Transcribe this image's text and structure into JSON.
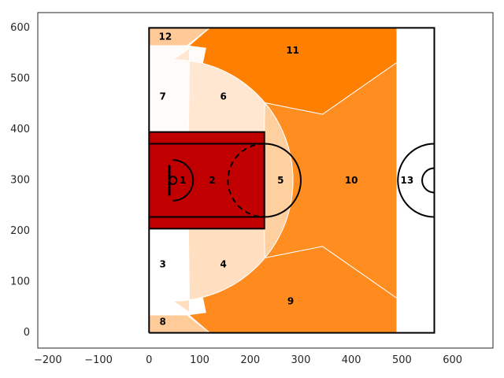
{
  "chart_data": {
    "type": "heatmap",
    "title": "",
    "xlabel": "",
    "ylabel": "",
    "xlim": [
      -220,
      680
    ],
    "ylim": [
      -30,
      630
    ],
    "grid": false,
    "x_ticks": [
      -200,
      -100,
      0,
      100,
      200,
      300,
      400,
      500,
      600
    ],
    "y_ticks": [
      0,
      100,
      200,
      300,
      400,
      500,
      600
    ],
    "x_tick_labels": [
      "−200",
      "−100",
      "0",
      "100",
      "200",
      "300",
      "400",
      "500",
      "600"
    ],
    "y_tick_labels": [
      "0",
      "100",
      "200",
      "300",
      "400",
      "500",
      "600"
    ],
    "court": {
      "x_range": [
        0,
        564
      ],
      "y_range": [
        0,
        600
      ],
      "hoop": [
        47,
        300
      ]
    },
    "zones": [
      {
        "label": "1",
        "label_pos": [
          67,
          300
        ],
        "color": "#c00000"
      },
      {
        "label": "2",
        "label_pos": [
          125,
          300
        ],
        "color": "#c00000"
      },
      {
        "label": "3",
        "label_pos": [
          27,
          135
        ],
        "color": "#ffffff"
      },
      {
        "label": "4",
        "label_pos": [
          147,
          135
        ],
        "color": "#ffdfc0"
      },
      {
        "label": "5",
        "label_pos": [
          260,
          300
        ],
        "color": "#ffd09f"
      },
      {
        "label": "6",
        "label_pos": [
          147,
          465
        ],
        "color": "#ffe7d2"
      },
      {
        "label": "7",
        "label_pos": [
          27,
          465
        ],
        "color": "#fffbf8"
      },
      {
        "label": "8",
        "label_pos": [
          27,
          22
        ],
        "color": "#ffcb98"
      },
      {
        "label": "9",
        "label_pos": [
          280,
          62
        ],
        "color": "#ff8a1e"
      },
      {
        "label": "10",
        "label_pos": [
          400,
          300
        ],
        "color": "#ff8d20"
      },
      {
        "label": "11",
        "label_pos": [
          284,
          556
        ],
        "color": "#ff7f00"
      },
      {
        "label": "12",
        "label_pos": [
          32,
          583
        ],
        "color": "#ffca98"
      },
      {
        "label": "13",
        "label_pos": [
          510,
          300
        ],
        "color": "#ffffff"
      }
    ]
  }
}
